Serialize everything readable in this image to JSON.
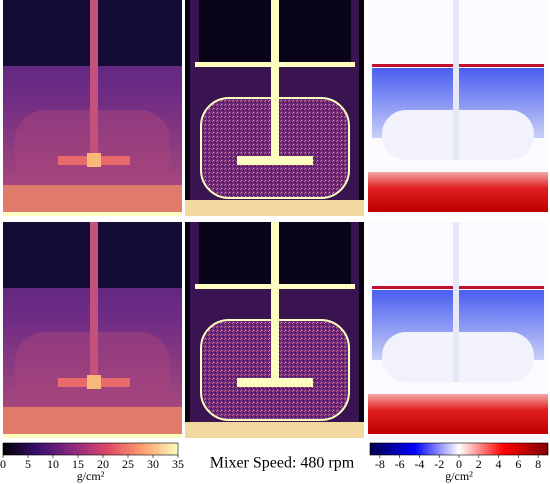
{
  "colorbars": [
    {
      "lim": [
        0,
        35
      ],
      "ticks": [
        0,
        5,
        10,
        15,
        20,
        25,
        30,
        35
      ],
      "label": "g/cm²",
      "colormap": "magma"
    },
    {
      "lim": [
        -9,
        9
      ],
      "ticks": [
        -8,
        -6,
        -4,
        -2,
        0,
        2,
        4,
        6,
        8
      ],
      "label": "g/cm²",
      "colormap": "seismic"
    }
  ],
  "caption": "Mixer Speed: 480 rpm"
}
